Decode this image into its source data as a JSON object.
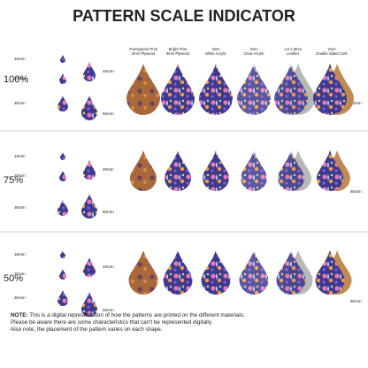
{
  "title": "PATTERN SCALE INDICATOR",
  "columns": [
    {
      "lines": [
        "Transparent Print",
        "3mm Plywood"
      ]
    },
    {
      "lines": [
        "Bright Print",
        "3mm Plywood"
      ]
    },
    {
      "lines": [
        "3mm",
        "White Acrylic"
      ]
    },
    {
      "lines": [
        "3mm",
        "Clear Acrylic"
      ]
    },
    {
      "lines": [
        "1.6-1.8mm",
        "Leather"
      ]
    },
    {
      "lines": [
        "2mm",
        "Double Sided Cork"
      ]
    }
  ],
  "sections": [
    {
      "scale": "100%",
      "sizes": [
        "15mm",
        "20mm",
        "30mm",
        "40mm",
        "50mm",
        "60mm"
      ]
    },
    {
      "scale": "75%",
      "sizes": [
        "15mm",
        "20mm",
        "30mm",
        "40mm",
        "50mm",
        "60mm"
      ]
    },
    {
      "scale": "50%",
      "sizes": [
        "15mm",
        "20mm",
        "30mm",
        "40mm",
        "50mm",
        "60mm"
      ]
    }
  ],
  "note": {
    "label": "NOTE:",
    "lines": [
      " This is a digital representation of how the patterns are printed on the different materials.",
      "Please be aware there are some characteristics that can't be represented digitally.",
      "Also note, the placement of the pattern varies on each shape."
    ]
  }
}
